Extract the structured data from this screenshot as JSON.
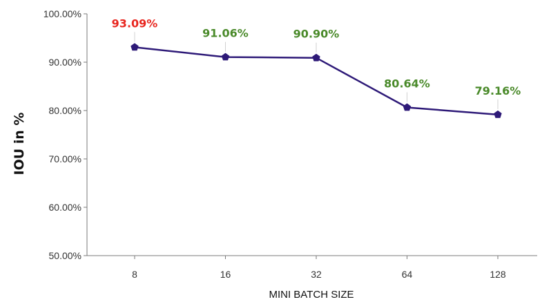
{
  "chart_data": {
    "type": "line",
    "title": "",
    "xlabel": "MINI BATCH SIZE",
    "ylabel": "IOU in %",
    "categories": [
      "8",
      "16",
      "32",
      "64",
      "128"
    ],
    "series": [
      {
        "values": [
          93.09,
          91.06,
          90.9,
          80.64,
          79.16
        ],
        "labels": [
          "93.09%",
          "91.06%",
          "90.90%",
          "80.64%",
          "79.16%"
        ],
        "label_colors": [
          "#e8261f",
          "#4a8a2a",
          "#4a8a2a",
          "#4a8a2a",
          "#4a8a2a"
        ]
      }
    ],
    "yticks": [
      "50.00%",
      "60.00%",
      "70.00%",
      "80.00%",
      "90.00%",
      "100.00%"
    ],
    "ylim": [
      50,
      100
    ],
    "grid": false,
    "legend": "none",
    "line_color": "#2e1a78",
    "marker": "pentagon"
  }
}
